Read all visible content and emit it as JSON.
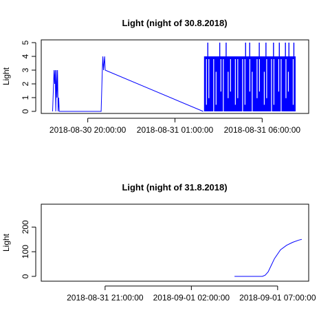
{
  "chart_data": [
    {
      "type": "line",
      "title": "Light (night of 30.8.2018)",
      "xlabel": "",
      "ylabel": "Light",
      "series_color": "#0000ff",
      "xlim": [
        "2018-08-30 17:20:00",
        "2018-08-31 08:40:00"
      ],
      "ylim": [
        0,
        5
      ],
      "yticks": [
        0,
        1,
        2,
        3,
        4,
        5
      ],
      "xticks": [
        "2018-08-30 20:00:00",
        "2018-08-31 01:00:00",
        "2018-08-31 06:00:00"
      ],
      "segments": [
        {
          "x": [
            "2018-08-30 17:59:00",
            "2018-08-30 18:04:00",
            "2018-08-30 18:06:00",
            "2018-08-30 18:08:00",
            "2018-08-30 18:10:00",
            "2018-08-30 18:12:00",
            "2018-08-30 18:14:00",
            "2018-08-30 18:16:00",
            "2018-08-30 18:18:00",
            "2018-08-30 18:20:00",
            "2018-08-30 18:22:00",
            "2018-08-30 20:46:00",
            "2018-08-30 20:50:00",
            "2018-08-30 20:52:00",
            "2018-08-30 20:54:00",
            "2018-08-30 20:58:00",
            "2018-08-30 21:00:00",
            "2018-08-31 02:37:00"
          ],
          "y": [
            0,
            3,
            2,
            3,
            0,
            3,
            1,
            3,
            0,
            1,
            0,
            0,
            3,
            4,
            3,
            4,
            3,
            0
          ]
        }
      ],
      "dense_regions": [
        {
          "x_start": "2018-08-31 02:40:00",
          "x_end": "2018-08-31 07:55:00",
          "low": 0,
          "high": 4,
          "spike_max": 5,
          "spike_times": [
            "2018-08-31 02:53:00",
            "2018-08-31 03:34:00",
            "2018-08-31 03:56:00",
            "2018-08-31 05:03:00",
            "2018-08-31 05:17:00",
            "2018-08-31 05:50:00",
            "2018-08-31 06:13:00",
            "2018-08-31 06:39:00",
            "2018-08-31 06:59:00",
            "2018-08-31 07:20:00",
            "2018-08-31 07:32:00",
            "2018-08-31 07:49:00"
          ]
        }
      ]
    },
    {
      "type": "line",
      "title": "Light (night of 31.8.2018)",
      "xlabel": "",
      "ylabel": "Light",
      "series_color": "#0000ff",
      "xlim": [
        "2018-08-31 17:18:00",
        "2018-09-01 08:48:00"
      ],
      "ylim": [
        0,
        290
      ],
      "yticks": [
        0,
        100,
        200
      ],
      "xticks": [
        "2018-08-31 21:00:00",
        "2018-09-01 02:00:00",
        "2018-09-01 07:00:00"
      ],
      "segments": [
        {
          "x": [
            "2018-09-01 04:30:00",
            "2018-09-01 06:07:00",
            "2018-09-01 06:17:00",
            "2018-09-01 06:27:00",
            "2018-09-01 06:38:00",
            "2018-09-01 06:49:00",
            "2018-09-01 07:10:00",
            "2018-09-01 07:31:00",
            "2018-09-01 07:52:00",
            "2018-09-01 08:13:00",
            "2018-09-01 08:24:00"
          ],
          "y": [
            0,
            0,
            5,
            18,
            45,
            72,
            108,
            126,
            138,
            147,
            150
          ]
        }
      ]
    }
  ]
}
